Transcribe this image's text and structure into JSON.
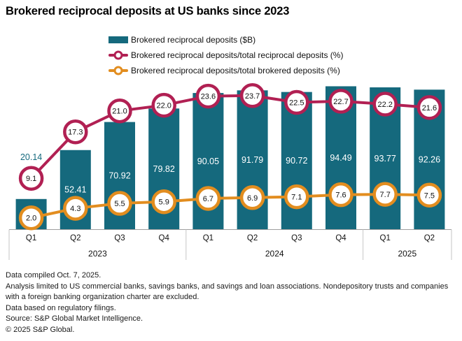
{
  "title": "Brokered reciprocal deposits at US banks since 2023",
  "colors": {
    "bar_teal": "#15697D",
    "line_pink": "#B12053",
    "line_orange": "#E28D1F",
    "axis_line": "#9E9E9E",
    "axis_separator": "#C6C6C6",
    "label_dark": "#111111",
    "bar_label_white": "#FFFFFF"
  },
  "chart_data": {
    "type": "bar+line combo",
    "categories": [
      "Q1",
      "Q2",
      "Q3",
      "Q4",
      "Q1",
      "Q2",
      "Q3",
      "Q4",
      "Q1",
      "Q2"
    ],
    "year_groups": [
      {
        "label": "2023",
        "quarters": 4
      },
      {
        "label": "2024",
        "quarters": 4
      },
      {
        "label": "2025",
        "quarters": 2
      }
    ],
    "series": [
      {
        "name": "Brokered reciprocal deposits ($B)",
        "type": "bar",
        "color": "#15697D",
        "values": [
          20.14,
          52.41,
          70.92,
          79.82,
          90.05,
          91.79,
          90.72,
          94.49,
          93.77,
          92.26
        ],
        "labels": [
          "20.14",
          "52.41",
          "70.92",
          "79.82",
          "90.05",
          "91.79",
          "90.72",
          "94.49",
          "93.77",
          "92.26"
        ]
      },
      {
        "name": "Brokered reciprocal deposits/total reciprocal deposits (%)",
        "type": "line",
        "color": "#B12053",
        "values": [
          9.1,
          17.3,
          21.0,
          22.0,
          23.6,
          23.7,
          22.5,
          22.7,
          22.2,
          21.6
        ],
        "labels": [
          "9.1",
          "17.3",
          "21.0",
          "22.0",
          "23.6",
          "23.7",
          "22.5",
          "22.7",
          "22.2",
          "21.6"
        ]
      },
      {
        "name": "Brokered reciprocal deposits/total brokered deposits (%)",
        "type": "line",
        "color": "#E28D1F",
        "values": [
          2.0,
          4.3,
          5.5,
          5.9,
          6.7,
          6.9,
          7.1,
          7.6,
          7.7,
          7.5
        ],
        "labels": [
          "2.0",
          "4.3",
          "5.5",
          "5.9",
          "6.7",
          "6.9",
          "7.1",
          "7.6",
          "7.7",
          "7.5"
        ]
      }
    ],
    "legend_position": "top-center",
    "grid": false,
    "value_axis_visible": false
  },
  "footer": {
    "lines": [
      "Data compiled Oct. 7, 2025.",
      "Analysis limited to US commercial banks, savings banks, and savings and loan associations. Nondepository trusts and companies with a foreign banking organization charter are excluded.",
      "Data based on regulatory filings.",
      "Source: S&P Global Market Intelligence.",
      "© 2025 S&P Global."
    ]
  }
}
